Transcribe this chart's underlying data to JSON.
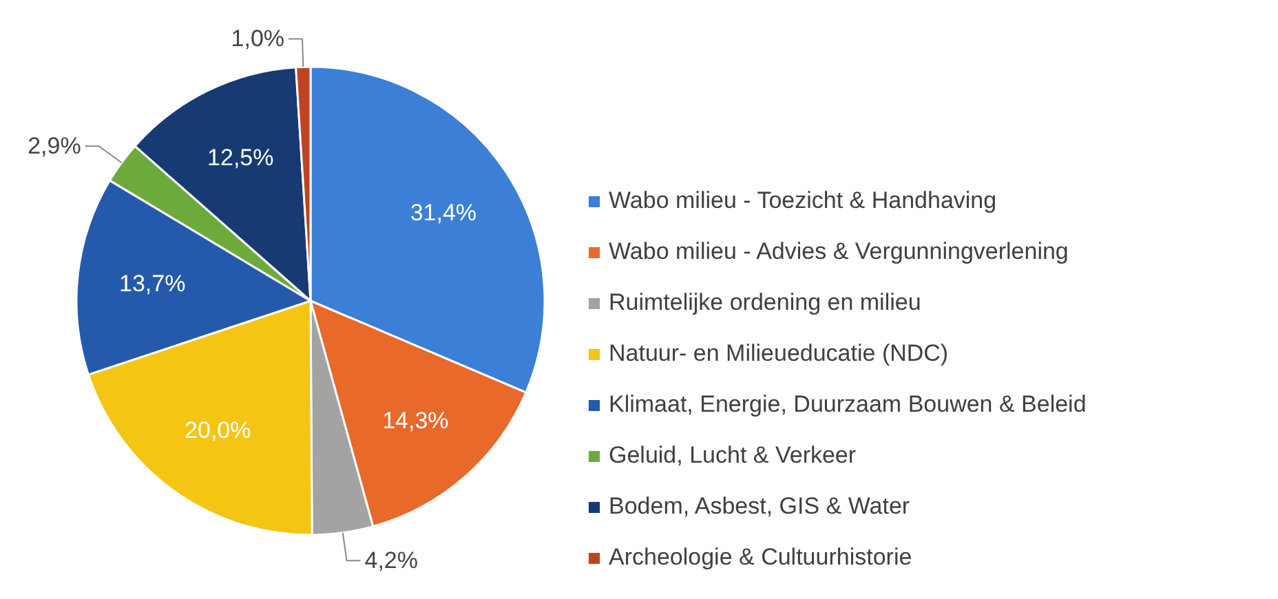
{
  "chart_data": {
    "type": "pie",
    "categories": [
      "Wabo milieu - Toezicht & Handhaving",
      "Wabo milieu - Advies & Vergunningverlening",
      "Ruimtelijke ordening en milieu",
      "Natuur- en Milieueducatie (NDC)",
      "Klimaat, Energie, Duurzaam Bouwen & Beleid",
      "Geluid, Lucht & Verkeer",
      "Bodem, Asbest, GIS & Water",
      "Archeologie & Cultuurhistorie"
    ],
    "values": [
      31.4,
      14.3,
      4.2,
      20.0,
      13.7,
      2.9,
      12.5,
      1.0
    ],
    "value_labels": [
      "31,4%",
      "14,3%",
      "4,2%",
      "20,0%",
      "13,7%",
      "2,9%",
      "12,5%",
      "1,0%"
    ],
    "colors": [
      "#3b80d6",
      "#e8692a",
      "#a3a3a3",
      "#f4c512",
      "#2559ac",
      "#6cab3b",
      "#173a73",
      "#c0431f"
    ],
    "legend": "right"
  }
}
